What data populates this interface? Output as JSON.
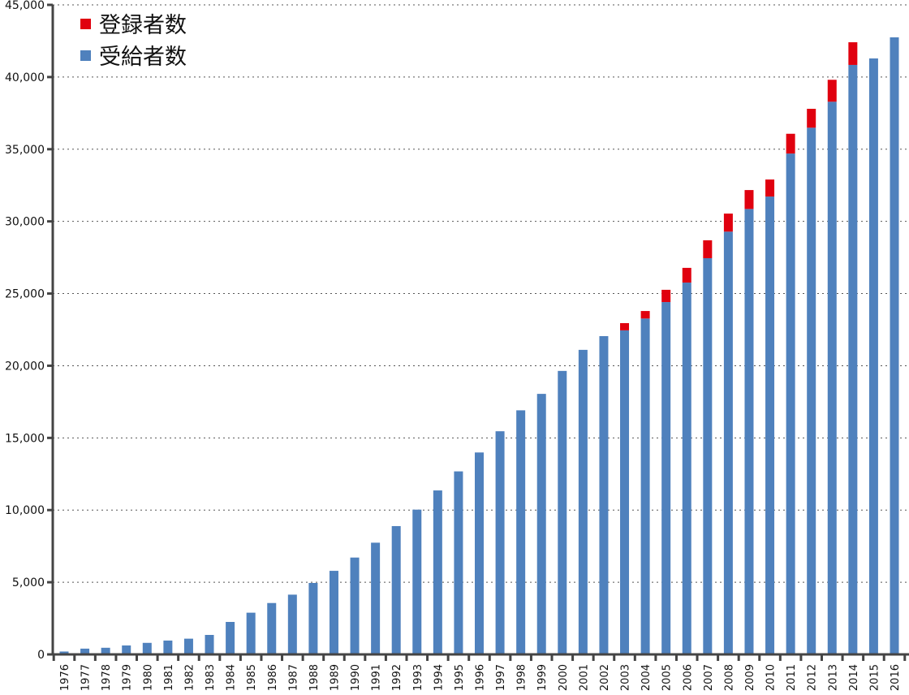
{
  "chart_data": {
    "type": "bar",
    "stacked": true,
    "title": "",
    "xlabel": "",
    "ylabel": "",
    "ylim": [
      0,
      45000
    ],
    "yticks": [
      0,
      5000,
      10000,
      15000,
      20000,
      25000,
      30000,
      35000,
      40000,
      45000
    ],
    "ytick_labels": [
      "0",
      "5,000",
      "10,000",
      "15,000",
      "20,000",
      "25,000",
      "30,000",
      "35,000",
      "40,000",
      "45,000"
    ],
    "grid": {
      "y": true,
      "style": "dotted"
    },
    "legend_position": "top-left",
    "categories": [
      "1976",
      "1977",
      "1978",
      "1979",
      "1980",
      "1981",
      "1982",
      "1983",
      "1984",
      "1985",
      "1986",
      "1987",
      "1988",
      "1989",
      "1990",
      "1991",
      "1992",
      "1993",
      "1994",
      "1995",
      "1996",
      "1997",
      "1998",
      "1999",
      "2000",
      "2001",
      "2002",
      "2003",
      "2004",
      "2005",
      "2006",
      "2007",
      "2008",
      "2009",
      "2010",
      "2011",
      "2012",
      "2013",
      "2014",
      "2015",
      "2016"
    ],
    "series": [
      {
        "name": "受給者数",
        "color": "#4f81bd",
        "values": [
          200,
          400,
          460,
          620,
          800,
          960,
          1090,
          1350,
          2250,
          2890,
          3560,
          4140,
          4950,
          5790,
          6710,
          7740,
          8890,
          10030,
          11360,
          12680,
          13990,
          15460,
          16910,
          18050,
          19640,
          21100,
          22050,
          22450,
          23270,
          24410,
          25760,
          27450,
          29290,
          30860,
          31720,
          34700,
          36490,
          38290,
          40840,
          41290,
          42750
        ]
      },
      {
        "name": "登録者数",
        "color": "#e0000f",
        "note": "stacked increment above 受給者数 (total registered minus recipients)",
        "values": [
          0,
          0,
          0,
          0,
          0,
          0,
          0,
          0,
          0,
          0,
          0,
          0,
          0,
          0,
          0,
          0,
          0,
          0,
          0,
          0,
          0,
          0,
          0,
          0,
          0,
          0,
          0,
          500,
          520,
          850,
          1020,
          1240,
          1250,
          1310,
          1180,
          1370,
          1310,
          1520,
          1570,
          0,
          0
        ]
      }
    ],
    "totals_registered": {
      "2003": 22950,
      "2004": 23790,
      "2005": 25260,
      "2006": 26780,
      "2007": 28690,
      "2008": 30540,
      "2009": 32170,
      "2010": 32900,
      "2011": 36070,
      "2012": 37800,
      "2013": 39810,
      "2014": 42410
    }
  },
  "legend": {
    "items": [
      {
        "label": "登録者数",
        "color": "#e0000f"
      },
      {
        "label": "受給者数",
        "color": "#4f81bd"
      }
    ]
  }
}
